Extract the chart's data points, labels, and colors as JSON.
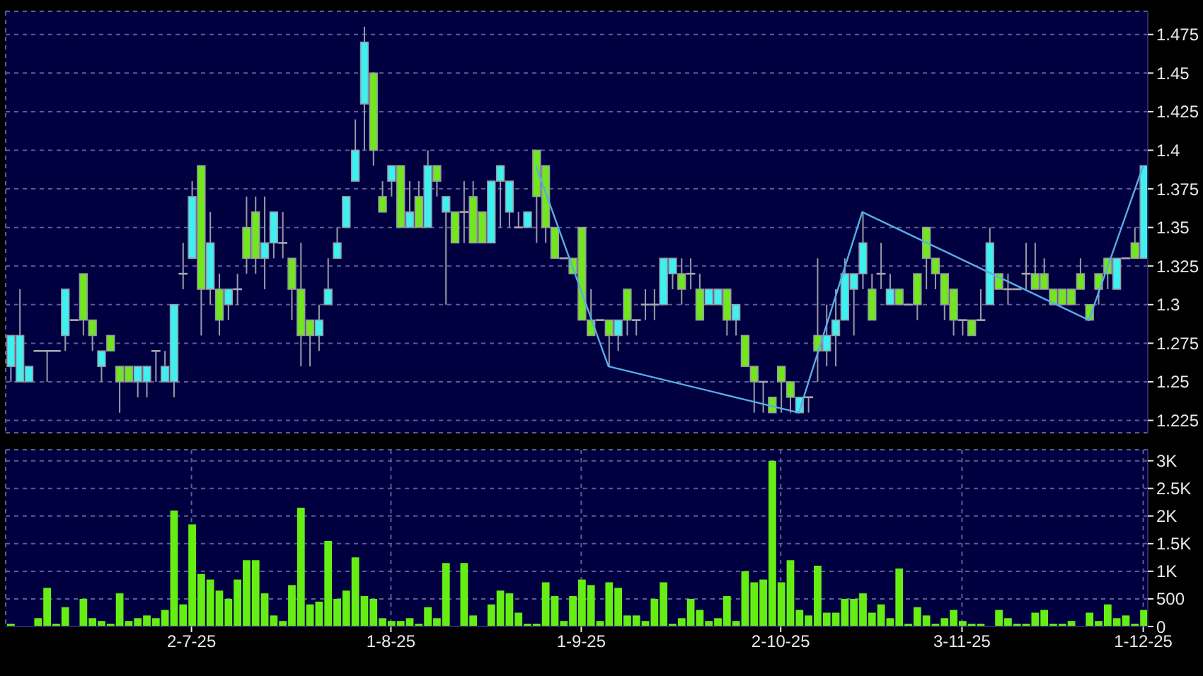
{
  "chart_data": [
    {
      "type": "candlestick",
      "categories": [
        null,
        null,
        null,
        null,
        null,
        null,
        null,
        null,
        null,
        null,
        null,
        null,
        null,
        null,
        null,
        null,
        null,
        null,
        null,
        null,
        null,
        null,
        null,
        null,
        null,
        null,
        null,
        null,
        null,
        null,
        null,
        null,
        null,
        null,
        null,
        null,
        null,
        null,
        null,
        null,
        null,
        null,
        null,
        null,
        null,
        null,
        null,
        null,
        null,
        null,
        null,
        null,
        null,
        null,
        null,
        null,
        null,
        null,
        null,
        null,
        null,
        null,
        null,
        null,
        null,
        null,
        null,
        null,
        null,
        null,
        null,
        null,
        null,
        null,
        null,
        null,
        null,
        null,
        null,
        null,
        null,
        null,
        null,
        null,
        null,
        null,
        null,
        null,
        null,
        null,
        null,
        null,
        null,
        null,
        null,
        null,
        null,
        null,
        null,
        null,
        null,
        null,
        null,
        null,
        null,
        null,
        null,
        null,
        null,
        null,
        null,
        null,
        null,
        null,
        null,
        null,
        null,
        null,
        null,
        null,
        null,
        null,
        null,
        null,
        null,
        null
      ],
      "ohlc": [
        [
          1.26,
          1.28,
          1.25,
          1.28
        ],
        [
          1.25,
          1.31,
          1.25,
          1.28
        ],
        [
          1.25,
          1.26,
          1.25,
          1.26
        ],
        [
          1.27,
          1.27,
          1.27,
          1.27
        ],
        [
          1.27,
          1.27,
          1.25,
          1.27
        ],
        [
          1.27,
          1.27,
          1.27,
          1.27
        ],
        [
          1.28,
          1.31,
          1.27,
          1.31
        ],
        [
          1.29,
          1.29,
          1.29,
          1.29
        ],
        [
          1.32,
          1.32,
          1.28,
          1.29
        ],
        [
          1.29,
          1.29,
          1.27,
          1.28
        ],
        [
          1.26,
          1.27,
          1.25,
          1.27
        ],
        [
          1.28,
          1.28,
          1.27,
          1.27
        ],
        [
          1.26,
          1.26,
          1.23,
          1.25
        ],
        [
          1.26,
          1.26,
          1.25,
          1.25
        ],
        [
          1.25,
          1.26,
          1.24,
          1.26
        ],
        [
          1.25,
          1.26,
          1.24,
          1.26
        ],
        [
          1.27,
          1.27,
          1.25,
          1.27
        ],
        [
          1.25,
          1.27,
          1.25,
          1.26
        ],
        [
          1.25,
          1.3,
          1.24,
          1.3
        ],
        [
          1.32,
          1.34,
          1.31,
          1.32
        ],
        [
          1.33,
          1.38,
          1.33,
          1.37
        ],
        [
          1.39,
          1.39,
          1.28,
          1.31
        ],
        [
          1.31,
          1.36,
          1.3,
          1.34
        ],
        [
          1.31,
          1.32,
          1.28,
          1.29
        ],
        [
          1.3,
          1.31,
          1.29,
          1.31
        ],
        [
          1.31,
          1.32,
          1.3,
          1.31
        ],
        [
          1.35,
          1.37,
          1.32,
          1.33
        ],
        [
          1.36,
          1.37,
          1.32,
          1.33
        ],
        [
          1.33,
          1.37,
          1.31,
          1.34
        ],
        [
          1.34,
          1.36,
          1.33,
          1.36
        ],
        [
          1.34,
          1.36,
          1.33,
          1.34
        ],
        [
          1.33,
          1.33,
          1.29,
          1.31
        ],
        [
          1.31,
          1.34,
          1.26,
          1.28
        ],
        [
          1.29,
          1.29,
          1.26,
          1.28
        ],
        [
          1.28,
          1.3,
          1.27,
          1.29
        ],
        [
          1.3,
          1.33,
          1.3,
          1.31
        ],
        [
          1.33,
          1.35,
          1.33,
          1.34
        ],
        [
          1.35,
          1.37,
          1.35,
          1.37
        ],
        [
          1.38,
          1.42,
          1.38,
          1.4
        ],
        [
          1.43,
          1.48,
          1.4,
          1.47
        ],
        [
          1.45,
          1.45,
          1.39,
          1.4
        ],
        [
          1.37,
          1.38,
          1.36,
          1.36
        ],
        [
          1.38,
          1.39,
          1.37,
          1.39
        ],
        [
          1.39,
          1.39,
          1.35,
          1.35
        ],
        [
          1.35,
          1.38,
          1.35,
          1.36
        ],
        [
          1.37,
          1.38,
          1.35,
          1.35
        ],
        [
          1.35,
          1.4,
          1.35,
          1.39
        ],
        [
          1.39,
          1.39,
          1.37,
          1.38
        ],
        [
          1.36,
          1.37,
          1.3,
          1.37
        ],
        [
          1.36,
          1.36,
          1.34,
          1.34
        ],
        [
          1.36,
          1.38,
          1.34,
          1.36
        ],
        [
          1.37,
          1.38,
          1.34,
          1.34
        ],
        [
          1.36,
          1.36,
          1.34,
          1.34
        ],
        [
          1.34,
          1.38,
          1.34,
          1.38
        ],
        [
          1.38,
          1.39,
          1.35,
          1.39
        ],
        [
          1.36,
          1.38,
          1.35,
          1.38
        ],
        [
          1.35,
          1.36,
          1.35,
          1.35
        ],
        [
          1.35,
          1.36,
          1.35,
          1.36
        ],
        [
          1.4,
          1.4,
          1.34,
          1.37
        ],
        [
          1.39,
          1.39,
          1.34,
          1.35
        ],
        [
          1.35,
          1.35,
          1.33,
          1.33
        ],
        [
          1.33,
          1.33,
          1.33,
          1.33
        ],
        [
          1.33,
          1.33,
          1.32,
          1.32
        ],
        [
          1.35,
          1.35,
          1.29,
          1.29
        ],
        [
          1.29,
          1.31,
          1.28,
          1.28
        ],
        [
          1.29,
          1.29,
          1.29,
          1.29
        ],
        [
          1.29,
          1.29,
          1.26,
          1.28
        ],
        [
          1.28,
          1.29,
          1.27,
          1.29
        ],
        [
          1.31,
          1.31,
          1.28,
          1.29
        ],
        [
          1.29,
          1.29,
          1.28,
          1.29
        ],
        [
          1.3,
          1.31,
          1.29,
          1.3
        ],
        [
          1.3,
          1.31,
          1.29,
          1.3
        ],
        [
          1.3,
          1.33,
          1.3,
          1.33
        ],
        [
          1.32,
          1.33,
          1.31,
          1.33
        ],
        [
          1.32,
          1.33,
          1.3,
          1.31
        ],
        [
          1.32,
          1.33,
          1.31,
          1.32
        ],
        [
          1.31,
          1.32,
          1.29,
          1.29
        ],
        [
          1.3,
          1.31,
          1.3,
          1.31
        ],
        [
          1.3,
          1.31,
          1.3,
          1.31
        ],
        [
          1.31,
          1.31,
          1.28,
          1.29
        ],
        [
          1.29,
          1.3,
          1.28,
          1.3
        ],
        [
          1.28,
          1.28,
          1.26,
          1.26
        ],
        [
          1.26,
          1.26,
          1.23,
          1.25
        ],
        [
          1.25,
          1.25,
          1.23,
          1.25
        ],
        [
          1.24,
          1.24,
          1.23,
          1.23
        ],
        [
          1.26,
          1.26,
          1.23,
          1.25
        ],
        [
          1.25,
          1.25,
          1.23,
          1.24
        ],
        [
          1.23,
          1.24,
          1.23,
          1.24
        ],
        [
          1.24,
          1.24,
          1.23,
          1.24
        ],
        [
          1.28,
          1.33,
          1.25,
          1.27
        ],
        [
          1.27,
          1.3,
          1.26,
          1.28
        ],
        [
          1.28,
          1.31,
          1.26,
          1.29
        ],
        [
          1.29,
          1.33,
          1.29,
          1.32
        ],
        [
          1.31,
          1.32,
          1.28,
          1.32
        ],
        [
          1.32,
          1.36,
          1.31,
          1.34
        ],
        [
          1.31,
          1.32,
          1.29,
          1.29
        ],
        [
          1.32,
          1.34,
          1.31,
          1.32
        ],
        [
          1.3,
          1.32,
          1.3,
          1.31
        ],
        [
          1.31,
          1.31,
          1.3,
          1.3
        ],
        [
          1.3,
          1.3,
          1.3,
          1.3
        ],
        [
          1.32,
          1.32,
          1.29,
          1.3
        ],
        [
          1.35,
          1.35,
          1.31,
          1.33
        ],
        [
          1.33,
          1.33,
          1.31,
          1.32
        ],
        [
          1.32,
          1.32,
          1.29,
          1.3
        ],
        [
          1.31,
          1.31,
          1.28,
          1.29
        ],
        [
          1.29,
          1.29,
          1.28,
          1.29
        ],
        [
          1.29,
          1.29,
          1.28,
          1.28
        ],
        [
          1.29,
          1.31,
          1.29,
          1.29
        ],
        [
          1.3,
          1.35,
          1.3,
          1.34
        ],
        [
          1.32,
          1.32,
          1.31,
          1.31
        ],
        [
          1.31,
          1.32,
          1.3,
          1.31
        ],
        [
          1.31,
          1.31,
          1.31,
          1.31
        ],
        [
          1.32,
          1.34,
          1.31,
          1.32
        ],
        [
          1.32,
          1.34,
          1.31,
          1.31
        ],
        [
          1.32,
          1.33,
          1.31,
          1.31
        ],
        [
          1.31,
          1.31,
          1.3,
          1.3
        ],
        [
          1.31,
          1.31,
          1.3,
          1.3
        ],
        [
          1.31,
          1.31,
          1.3,
          1.3
        ],
        [
          1.32,
          1.33,
          1.31,
          1.31
        ],
        [
          1.3,
          1.3,
          1.29,
          1.29
        ],
        [
          1.32,
          1.32,
          1.3,
          1.31
        ],
        [
          1.33,
          1.33,
          1.31,
          1.32
        ],
        [
          1.31,
          1.33,
          1.31,
          1.33
        ],
        [
          1.33,
          1.33,
          1.33,
          1.33
        ],
        [
          1.34,
          1.35,
          1.33,
          1.33
        ],
        [
          1.33,
          1.39,
          1.33,
          1.39
        ]
      ],
      "color": "#9a9aa6",
      "colors": [
        "#3ef0f0",
        "#3ef0f0",
        "#3ef0f0",
        "#a8a8b0",
        "#a8a8b0",
        "#a8a8b0",
        "#3ef0f0",
        "#a8a8b0",
        "#72e61e",
        "#72e61e",
        "#3ef0f0",
        "#72e61e",
        "#72e61e",
        "#72e61e",
        "#3ef0f0",
        "#3ef0f0",
        "#a8a8b0",
        "#3ef0f0",
        "#3ef0f0",
        "#a8a8b0",
        "#3ef0f0",
        "#72e61e",
        "#3ef0f0",
        "#72e61e",
        "#3ef0f0",
        "#a8a8b0",
        "#72e61e",
        "#72e61e",
        "#3ef0f0",
        "#3ef0f0",
        "#a8a8b0",
        "#72e61e",
        "#72e61e",
        "#72e61e",
        "#3ef0f0",
        "#3ef0f0",
        "#3ef0f0",
        "#3ef0f0",
        "#3ef0f0",
        "#3ef0f0",
        "#72e61e",
        "#72e61e",
        "#3ef0f0",
        "#72e61e",
        "#3ef0f0",
        "#72e61e",
        "#3ef0f0",
        "#72e61e",
        "#3ef0f0",
        "#72e61e",
        "#a8a8b0",
        "#72e61e",
        "#72e61e",
        "#3ef0f0",
        "#3ef0f0",
        "#3ef0f0",
        "#a8a8b0",
        "#3ef0f0",
        "#72e61e",
        "#72e61e",
        "#72e61e",
        "#a8a8b0",
        "#72e61e",
        "#72e61e",
        "#72e61e",
        "#a8a8b0",
        "#72e61e",
        "#3ef0f0",
        "#72e61e",
        "#a8a8b0",
        "#a8a8b0",
        "#a8a8b0",
        "#3ef0f0",
        "#3ef0f0",
        "#72e61e",
        "#a8a8b0",
        "#72e61e",
        "#3ef0f0",
        "#3ef0f0",
        "#72e61e",
        "#3ef0f0",
        "#72e61e",
        "#72e61e",
        "#a8a8b0",
        "#72e61e",
        "#72e61e",
        "#72e61e",
        "#3ef0f0",
        "#a8a8b0",
        "#72e61e",
        "#3ef0f0",
        "#3ef0f0",
        "#3ef0f0",
        "#3ef0f0",
        "#3ef0f0",
        "#72e61e",
        "#a8a8b0",
        "#3ef0f0",
        "#72e61e",
        "#a8a8b0",
        "#72e61e",
        "#72e61e",
        "#72e61e",
        "#72e61e",
        "#72e61e",
        "#a8a8b0",
        "#72e61e",
        "#a8a8b0",
        "#3ef0f0",
        "#72e61e",
        "#a8a8b0",
        "#a8a8b0",
        "#a8a8b0",
        "#72e61e",
        "#72e61e",
        "#72e61e",
        "#72e61e",
        "#72e61e",
        "#72e61e",
        "#72e61e",
        "#72e61e",
        "#72e61e",
        "#3ef0f0",
        "#a8a8b0",
        "#72e61e",
        "#3ef0f0"
      ],
      "series": [
        {
          "type": "line",
          "color": "#55aee6",
          "values": [
            null,
            null,
            null,
            null,
            null,
            null,
            null,
            null,
            null,
            null,
            null,
            null,
            null,
            null,
            null,
            null,
            null,
            null,
            null,
            null,
            null,
            null,
            null,
            null,
            null,
            null,
            null,
            null,
            null,
            null,
            null,
            null,
            null,
            null,
            null,
            null,
            null,
            null,
            null,
            null,
            null,
            null,
            null,
            null,
            null,
            null,
            null,
            null,
            null,
            null,
            null,
            null,
            null,
            null,
            null,
            null,
            null,
            null,
            1.39,
            null,
            null,
            null,
            null,
            null,
            null,
            null,
            1.26,
            null,
            null,
            null,
            null,
            null,
            null,
            null,
            null,
            null,
            null,
            null,
            null,
            null,
            null,
            null,
            null,
            null,
            null,
            null,
            null,
            1.23,
            null,
            null,
            null,
            null,
            null,
            null,
            1.36,
            null,
            null,
            null,
            null,
            null,
            null,
            null,
            null,
            null,
            null,
            null,
            null,
            null,
            null,
            null,
            null,
            null,
            null,
            null,
            null,
            null,
            null,
            null,
            null,
            1.29,
            null,
            null,
            null,
            null,
            null,
            1.39
          ]
        }
      ],
      "ylim": [
        1.217,
        1.49
      ],
      "yticks": [
        1.225,
        1.25,
        1.275,
        1.3,
        1.325,
        1.35,
        1.375,
        1.4,
        1.425,
        1.45,
        1.475
      ],
      "grid": true,
      "tick_labels": "y"
    },
    {
      "type": "bar",
      "categories": [
        null,
        null,
        null,
        null,
        null,
        null,
        null,
        null,
        null,
        null,
        null,
        null,
        null,
        null,
        null,
        null,
        null,
        null,
        null,
        null,
        "2-7-25",
        null,
        null,
        null,
        null,
        null,
        null,
        null,
        null,
        null,
        null,
        null,
        null,
        null,
        null,
        null,
        null,
        null,
        null,
        null,
        null,
        null,
        "1-8-25",
        null,
        null,
        null,
        null,
        null,
        null,
        null,
        null,
        null,
        null,
        null,
        null,
        null,
        null,
        null,
        null,
        null,
        null,
        null,
        null,
        "1-9-25",
        null,
        null,
        null,
        null,
        null,
        null,
        null,
        null,
        null,
        null,
        null,
        null,
        null,
        null,
        null,
        null,
        null,
        null,
        null,
        null,
        null,
        "2-10-25",
        null,
        null,
        null,
        null,
        null,
        null,
        null,
        null,
        null,
        null,
        null,
        null,
        null,
        null,
        null,
        null,
        null,
        null,
        null,
        "3-11-25",
        null,
        null,
        null,
        null,
        null,
        null,
        null,
        null,
        null,
        null,
        null,
        null,
        null,
        null,
        null,
        null,
        null,
        null,
        null,
        "1-12-25"
      ],
      "values": [
        50,
        0,
        0,
        150,
        700,
        50,
        350,
        0,
        500,
        150,
        100,
        50,
        600,
        100,
        150,
        200,
        150,
        300,
        2100,
        400,
        1850,
        950,
        850,
        650,
        500,
        850,
        1200,
        1200,
        600,
        200,
        100,
        750,
        2150,
        400,
        450,
        1550,
        500,
        650,
        1250,
        550,
        500,
        150,
        100,
        100,
        150,
        50,
        350,
        150,
        1150,
        0,
        1150,
        200,
        0,
        400,
        650,
        600,
        250,
        50,
        50,
        800,
        550,
        100,
        550,
        850,
        750,
        100,
        800,
        700,
        200,
        200,
        100,
        500,
        800,
        50,
        150,
        500,
        300,
        100,
        150,
        550,
        100,
        1000,
        800,
        850,
        3000,
        800,
        1200,
        300,
        200,
        1100,
        250,
        250,
        500,
        500,
        600,
        250,
        400,
        150,
        1050,
        50,
        350,
        200,
        50,
        150,
        300,
        100,
        50,
        50,
        0,
        300,
        150,
        50,
        50,
        250,
        300,
        50,
        50,
        100,
        0,
        250,
        100,
        400,
        150,
        200,
        50,
        300
      ],
      "color": "#66ee14",
      "ylim": [
        0,
        3200
      ],
      "yticks": [
        0,
        500,
        {
          "value": 1000,
          "label": "1K"
        },
        {
          "value": 1500,
          "label": "1.5K"
        },
        {
          "value": 2000,
          "label": "2K"
        },
        {
          "value": 2500,
          "label": "2.5K"
        },
        {
          "value": 3000,
          "label": "3K"
        }
      ],
      "grid": true
    }
  ]
}
